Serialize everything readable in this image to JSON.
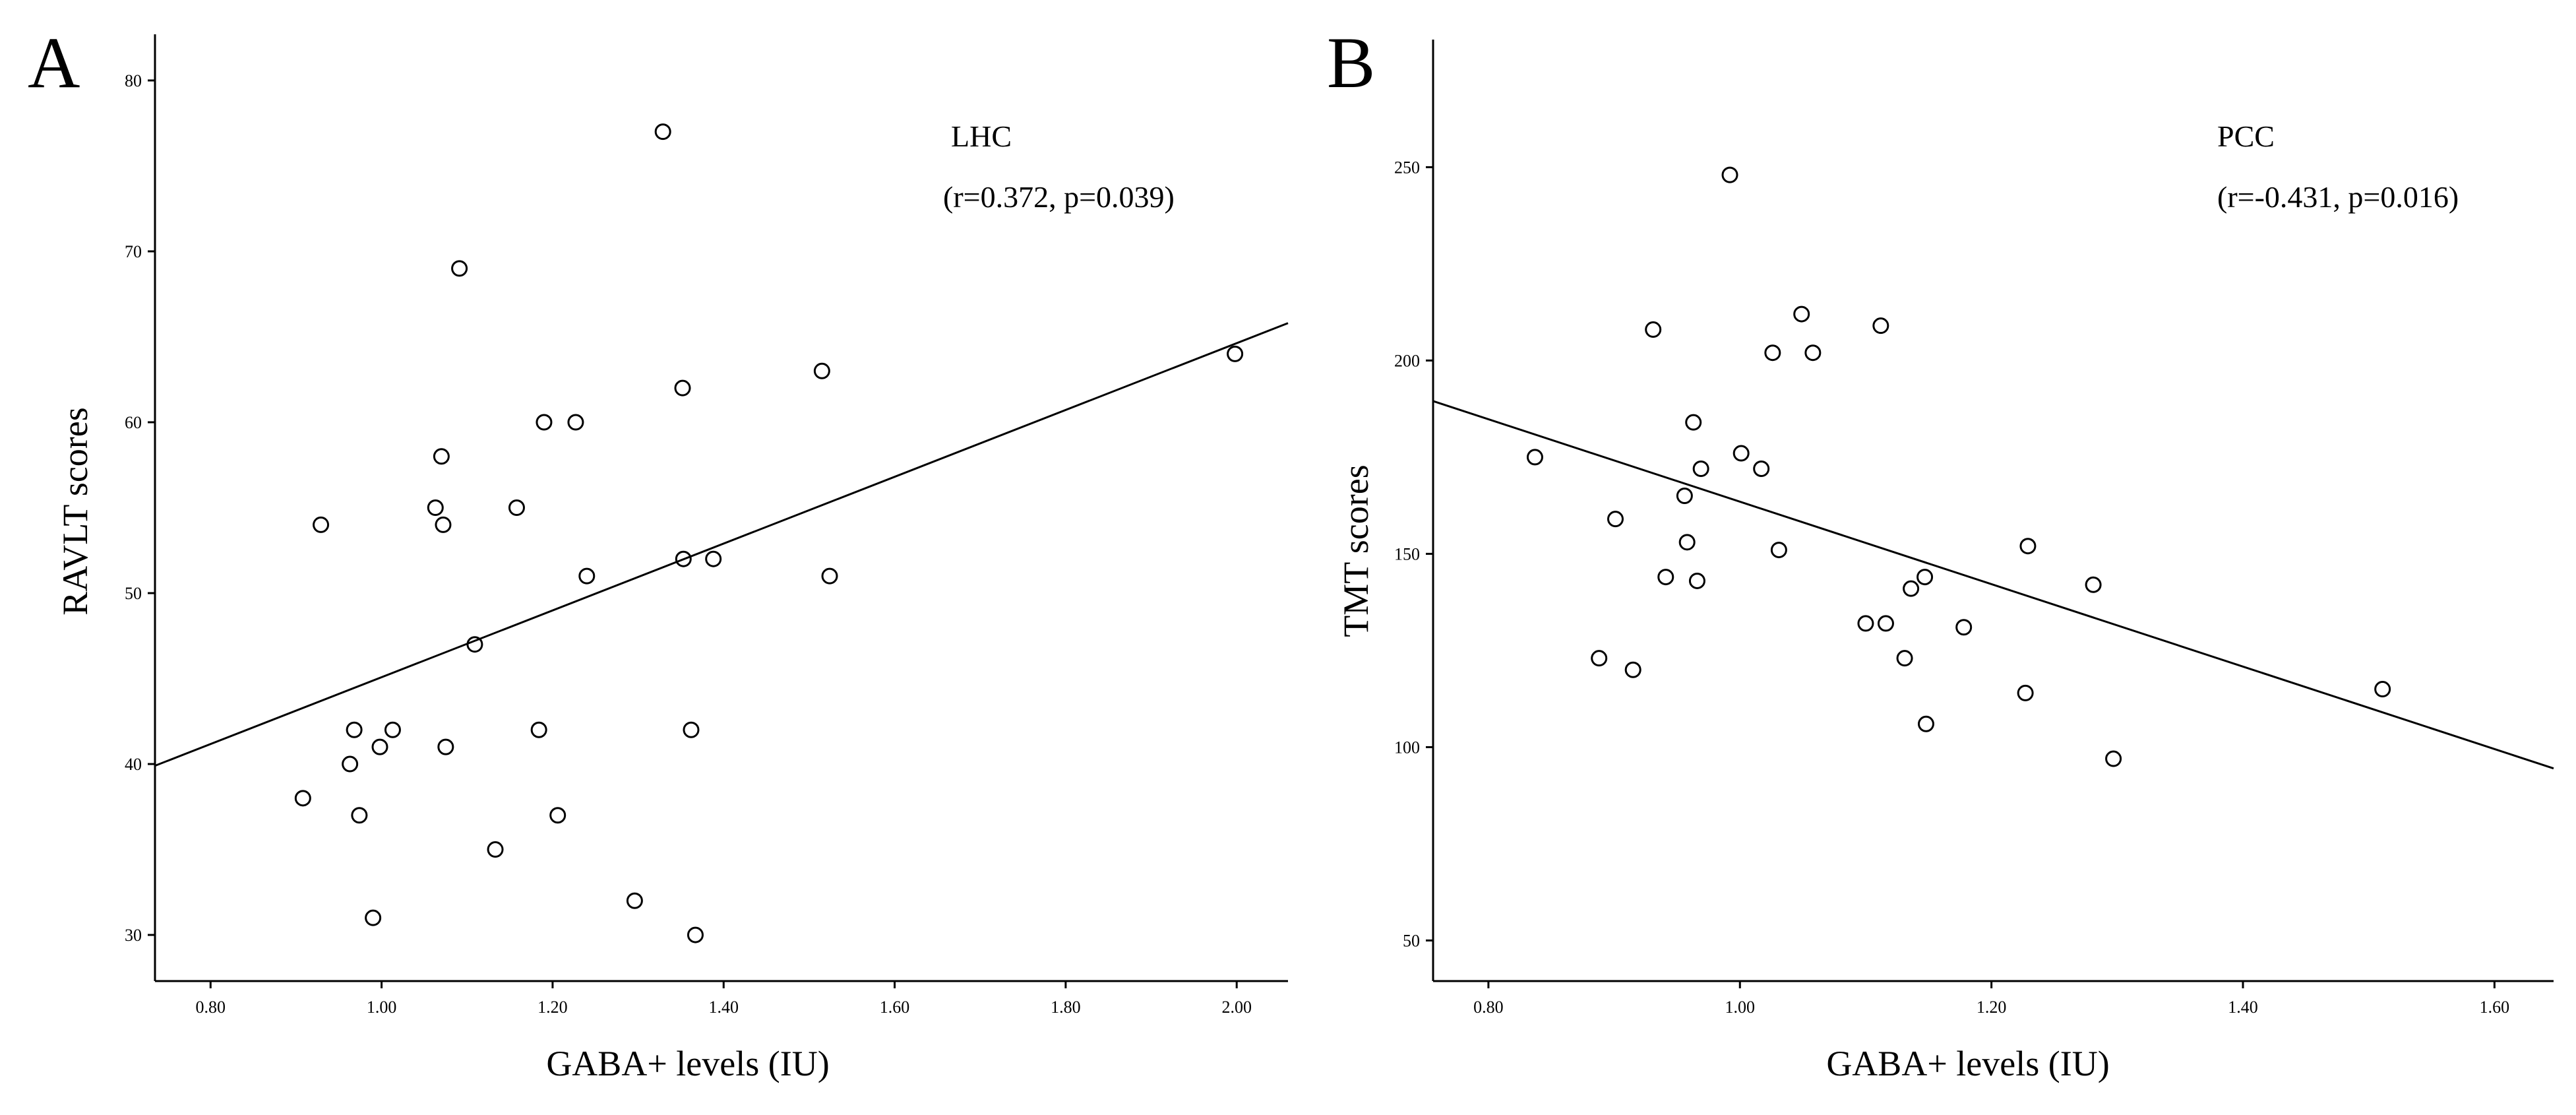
{
  "chart_data": [
    {
      "type": "scatter",
      "panel_label": "A",
      "annotation_region": "LHC",
      "annotation_stats": "(r=0.372, p=0.039)",
      "xlabel": "GABA+ levels (IU)",
      "ylabel": "RAVLT scores",
      "xlim": [
        0.735,
        2.06
      ],
      "ylim": [
        27.3,
        82.7
      ],
      "xticks": [
        0.8,
        1.0,
        1.2,
        1.4,
        1.6,
        1.8,
        2.0
      ],
      "xtick_labels": [
        "0.80",
        "1.00",
        "1.20",
        "1.40",
        "1.60",
        "1.80",
        "2.00"
      ],
      "yticks": [
        30,
        40,
        50,
        60,
        70,
        80
      ],
      "ytick_labels": [
        "30",
        "40",
        "50",
        "60",
        "70",
        "80"
      ],
      "fit_line": {
        "x": [
          0.735,
          2.06
        ],
        "y": [
          39.9,
          65.8
        ]
      },
      "points": [
        {
          "x": 0.908,
          "y": 38
        },
        {
          "x": 0.929,
          "y": 54
        },
        {
          "x": 0.963,
          "y": 40
        },
        {
          "x": 0.968,
          "y": 42
        },
        {
          "x": 0.974,
          "y": 37
        },
        {
          "x": 0.99,
          "y": 31
        },
        {
          "x": 0.998,
          "y": 41
        },
        {
          "x": 1.013,
          "y": 42
        },
        {
          "x": 1.063,
          "y": 55
        },
        {
          "x": 1.07,
          "y": 58
        },
        {
          "x": 1.072,
          "y": 54
        },
        {
          "x": 1.075,
          "y": 41
        },
        {
          "x": 1.091,
          "y": 69
        },
        {
          "x": 1.109,
          "y": 47
        },
        {
          "x": 1.133,
          "y": 35
        },
        {
          "x": 1.158,
          "y": 55
        },
        {
          "x": 1.184,
          "y": 42
        },
        {
          "x": 1.19,
          "y": 60
        },
        {
          "x": 1.206,
          "y": 37
        },
        {
          "x": 1.227,
          "y": 60
        },
        {
          "x": 1.24,
          "y": 51
        },
        {
          "x": 1.296,
          "y": 32
        },
        {
          "x": 1.329,
          "y": 77
        },
        {
          "x": 1.352,
          "y": 62
        },
        {
          "x": 1.353,
          "y": 52
        },
        {
          "x": 1.362,
          "y": 42
        },
        {
          "x": 1.367,
          "y": 30
        },
        {
          "x": 1.388,
          "y": 52
        },
        {
          "x": 1.515,
          "y": 63
        },
        {
          "x": 1.524,
          "y": 51
        },
        {
          "x": 1.998,
          "y": 64
        }
      ]
    },
    {
      "type": "scatter",
      "panel_label": "B",
      "annotation_region": "PCC",
      "annotation_stats": "(r=-0.431, p=0.016)",
      "xlabel": "GABA+ levels (IU)",
      "ylabel": "TMT scores",
      "xlim": [
        0.756,
        1.647
      ],
      "ylim": [
        39.5,
        283
      ],
      "xticks": [
        0.8,
        1.0,
        1.2,
        1.4,
        1.6
      ],
      "xtick_labels": [
        "0.80",
        "1.00",
        "1.20",
        "1.40",
        "1.60"
      ],
      "yticks": [
        50,
        100,
        150,
        200,
        250
      ],
      "ytick_labels": [
        "50",
        "100",
        "150",
        "200",
        "250"
      ],
      "fit_line": {
        "x": [
          0.756,
          1.647
        ],
        "y": [
          189.5,
          94.5
        ]
      },
      "points": [
        {
          "x": 0.837,
          "y": 175
        },
        {
          "x": 0.888,
          "y": 123
        },
        {
          "x": 0.901,
          "y": 159
        },
        {
          "x": 0.915,
          "y": 120
        },
        {
          "x": 0.931,
          "y": 208
        },
        {
          "x": 0.941,
          "y": 144
        },
        {
          "x": 0.956,
          "y": 165
        },
        {
          "x": 0.958,
          "y": 153
        },
        {
          "x": 0.963,
          "y": 184
        },
        {
          "x": 0.966,
          "y": 143
        },
        {
          "x": 0.969,
          "y": 172
        },
        {
          "x": 0.992,
          "y": 248
        },
        {
          "x": 1.001,
          "y": 176
        },
        {
          "x": 1.017,
          "y": 172
        },
        {
          "x": 1.026,
          "y": 202
        },
        {
          "x": 1.031,
          "y": 151
        },
        {
          "x": 1.049,
          "y": 212
        },
        {
          "x": 1.058,
          "y": 202
        },
        {
          "x": 1.1,
          "y": 132
        },
        {
          "x": 1.112,
          "y": 209
        },
        {
          "x": 1.116,
          "y": 132
        },
        {
          "x": 1.131,
          "y": 123
        },
        {
          "x": 1.136,
          "y": 141
        },
        {
          "x": 1.147,
          "y": 144
        },
        {
          "x": 1.148,
          "y": 106
        },
        {
          "x": 1.178,
          "y": 131
        },
        {
          "x": 1.227,
          "y": 114
        },
        {
          "x": 1.229,
          "y": 152
        },
        {
          "x": 1.281,
          "y": 142
        },
        {
          "x": 1.297,
          "y": 97
        },
        {
          "x": 1.511,
          "y": 115
        }
      ]
    }
  ]
}
